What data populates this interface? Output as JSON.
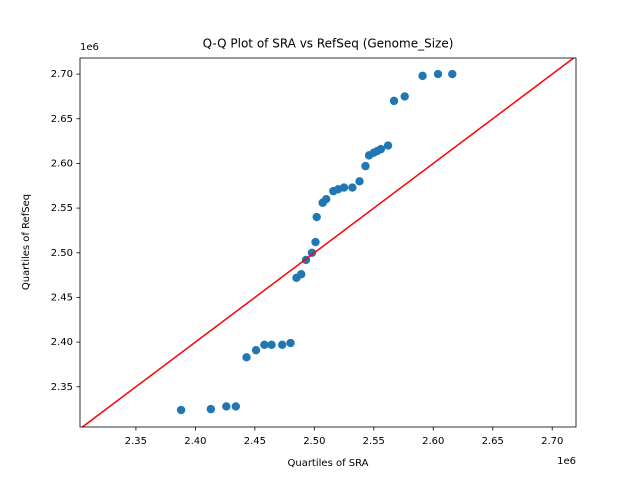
{
  "chart_data": {
    "type": "scatter",
    "title": "Q-Q Plot of SRA vs RefSeq (Genome_Size)",
    "x_label": "Quartiles of SRA",
    "y_label": "Quartiles of RefSeq",
    "x_offset_label": "1e6",
    "y_offset_label": "1e6",
    "color": "#1f77b4",
    "identity_line": {
      "color": "#ff0000"
    },
    "x": [
      2.388,
      2.413,
      2.426,
      2.434,
      2.443,
      2.451,
      2.458,
      2.464,
      2.473,
      2.48,
      2.485,
      2.489,
      2.493,
      2.498,
      2.501,
      2.502,
      2.507,
      2.51,
      2.516,
      2.52,
      2.525,
      2.532,
      2.538,
      2.543,
      2.546,
      2.55,
      2.553,
      2.556,
      2.562,
      2.567,
      2.576,
      2.591,
      2.604,
      2.616
    ],
    "values": [
      2.324,
      2.325,
      2.328,
      2.328,
      2.383,
      2.391,
      2.397,
      2.397,
      2.397,
      2.399,
      2.472,
      2.476,
      2.492,
      2.5,
      2.512,
      2.54,
      2.556,
      2.56,
      2.569,
      2.571,
      2.573,
      2.573,
      2.58,
      2.597,
      2.609,
      2.612,
      2.614,
      2.616,
      2.62,
      2.67,
      2.675,
      2.698,
      2.7,
      2.7
    ],
    "xlim": [
      2.303,
      2.72
    ],
    "ylim": [
      2.305,
      2.718
    ],
    "xticks": [
      2.35,
      {
        "value": 2.4,
        "label": "2.40"
      },
      2.45,
      {
        "value": 2.5,
        "label": "2.50"
      },
      2.55,
      {
        "value": 2.6,
        "label": "2.60"
      },
      2.65,
      {
        "value": 2.7,
        "label": "2.70"
      }
    ],
    "yticks": [
      2.35,
      {
        "value": 2.4,
        "label": "2.40"
      },
      2.45,
      {
        "value": 2.5,
        "label": "2.50"
      },
      2.55,
      {
        "value": 2.6,
        "label": "2.60"
      },
      2.65,
      {
        "value": 2.7,
        "label": "2.70"
      }
    ],
    "grid": false
  }
}
